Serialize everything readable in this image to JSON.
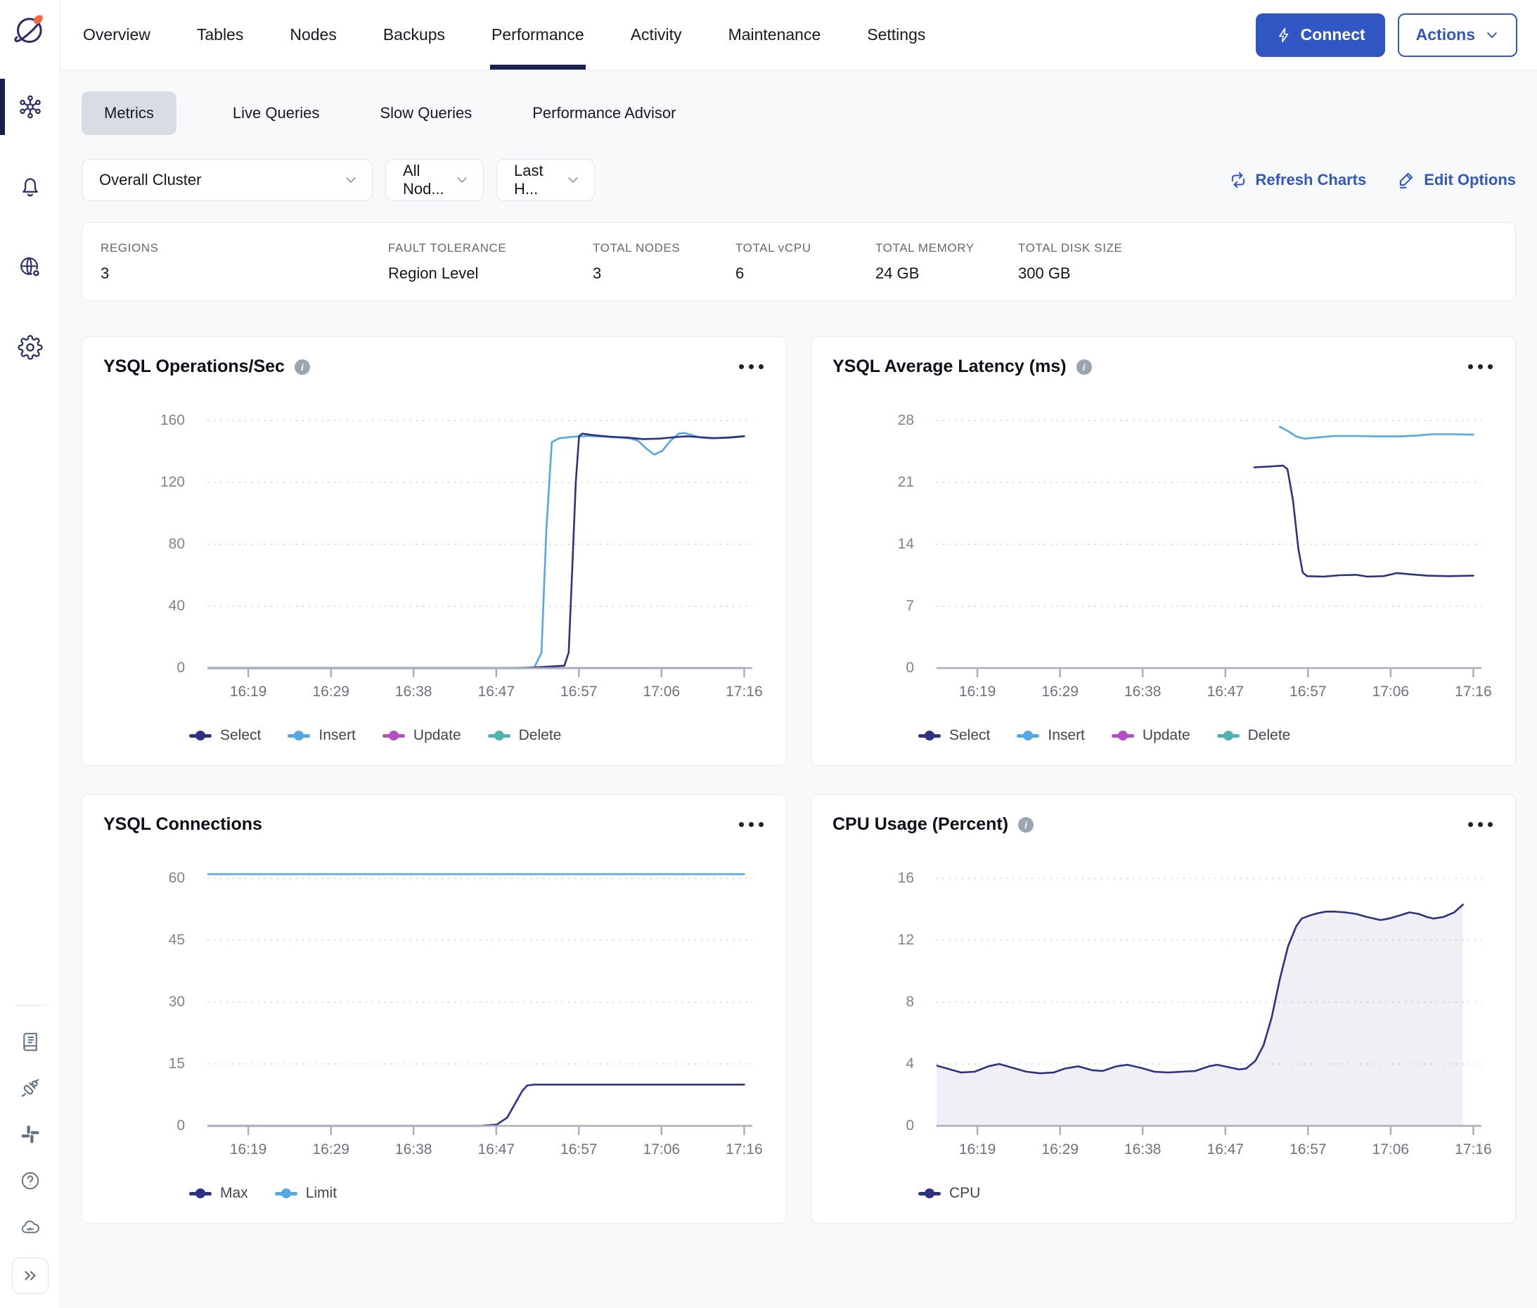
{
  "colors": {
    "accent_blue": "#3057c4",
    "active_underline": "#1a1f52",
    "series_navy": "#2d3282",
    "series_light_blue": "#55a7e5",
    "series_magenta": "#b44ec5",
    "series_teal": "#4db5ad",
    "area_fill": "rgba(45,50,130,0.08)"
  },
  "sidebar": {
    "top_items": [
      {
        "id": "clusters",
        "icon": "clusters-icon",
        "active": true
      },
      {
        "id": "alerts",
        "icon": "alerts-bell-icon",
        "active": false
      },
      {
        "id": "network",
        "icon": "network-globe-gear-icon",
        "active": false
      },
      {
        "id": "settings",
        "icon": "settings-gear-icon",
        "active": false
      }
    ],
    "bottom_items": [
      {
        "id": "docs",
        "icon": "docs-book-icon"
      },
      {
        "id": "integrations",
        "icon": "integrations-plug-icon"
      },
      {
        "id": "slack",
        "icon": "slack-icon"
      },
      {
        "id": "help",
        "icon": "help-question-icon"
      },
      {
        "id": "cloud-status",
        "icon": "cloud-status-icon"
      },
      {
        "id": "expand",
        "icon": "chevrons-right-icon"
      }
    ]
  },
  "header": {
    "tabs": [
      "Overview",
      "Tables",
      "Nodes",
      "Backups",
      "Performance",
      "Activity",
      "Maintenance",
      "Settings"
    ],
    "active_tab": "Performance",
    "connect_label": "Connect",
    "actions_label": "Actions"
  },
  "subtabs": {
    "items": [
      "Metrics",
      "Live Queries",
      "Slow Queries",
      "Performance Advisor"
    ],
    "active": "Metrics"
  },
  "filters": {
    "cluster_select": "Overall Cluster",
    "node_select": "All Nod...",
    "time_select": "Last H...",
    "refresh_label": "Refresh Charts",
    "edit_label": "Edit Options"
  },
  "summary": [
    {
      "label": "REGIONS",
      "value": "3"
    },
    {
      "label": "FAULT TOLERANCE",
      "value": "Region Level"
    },
    {
      "label": "TOTAL NODES",
      "value": "3"
    },
    {
      "label": "TOTAL vCPU",
      "value": "6"
    },
    {
      "label": "TOTAL MEMORY",
      "value": "24 GB"
    },
    {
      "label": "TOTAL DISK SIZE",
      "value": "300 GB"
    }
  ],
  "chart_data": [
    {
      "type": "line",
      "title": "YSQL Operations/Sec",
      "info_icon": true,
      "ylim": [
        0,
        160
      ],
      "yticks": [
        0,
        40,
        80,
        120,
        160
      ],
      "xticks": [
        {
          "label": "16:19",
          "f": 0.075
        },
        {
          "label": "16:29",
          "f": 0.2267
        },
        {
          "label": "16:38",
          "f": 0.3783
        },
        {
          "label": "16:47",
          "f": 0.53
        },
        {
          "label": "16:57",
          "f": 0.6817
        },
        {
          "label": "17:06",
          "f": 0.8333
        },
        {
          "label": "17:16",
          "f": 0.985
        }
      ],
      "series": [
        {
          "name": "Select",
          "color": "#2d3282",
          "points": [
            [
              0,
              0
            ],
            [
              0.58,
              0
            ],
            [
              0.62,
              0.8
            ],
            [
              0.655,
              1.5
            ],
            [
              0.663,
              10
            ],
            [
              0.669,
              60
            ],
            [
              0.676,
              120
            ],
            [
              0.682,
              150
            ],
            [
              0.688,
              151.5
            ],
            [
              0.71,
              150.5
            ],
            [
              0.74,
              149.5
            ],
            [
              0.77,
              149
            ],
            [
              0.8,
              148
            ],
            [
              0.83,
              148.3
            ],
            [
              0.86,
              149.3
            ],
            [
              0.88,
              149.8
            ],
            [
              0.9,
              149.3
            ],
            [
              0.93,
              148.6
            ],
            [
              0.96,
              149
            ],
            [
              0.985,
              149.8
            ]
          ]
        },
        {
          "name": "Insert",
          "color": "#55a7e5",
          "points": [
            [
              0,
              0
            ],
            [
              0.55,
              0
            ],
            [
              0.6,
              0.5
            ],
            [
              0.613,
              10
            ],
            [
              0.622,
              90
            ],
            [
              0.632,
              146
            ],
            [
              0.645,
              148.5
            ],
            [
              0.67,
              149.5
            ],
            [
              0.7,
              150
            ],
            [
              0.73,
              149.5
            ],
            [
              0.755,
              149
            ],
            [
              0.775,
              148.5
            ],
            [
              0.79,
              147
            ],
            [
              0.805,
              142
            ],
            [
              0.82,
              138
            ],
            [
              0.835,
              140.5
            ],
            [
              0.85,
              147
            ],
            [
              0.865,
              151.5
            ],
            [
              0.875,
              152
            ],
            [
              0.89,
              150.5
            ],
            [
              0.905,
              149
            ],
            [
              0.925,
              148.5
            ],
            [
              0.95,
              149
            ],
            [
              0.985,
              150
            ]
          ]
        },
        {
          "name": "Update",
          "color": "#b44ec5",
          "points": [
            [
              0,
              0
            ],
            [
              0.985,
              0
            ]
          ]
        },
        {
          "name": "Delete",
          "color": "#4db5ad",
          "points": [
            [
              0,
              0
            ],
            [
              0.985,
              0
            ]
          ]
        }
      ]
    },
    {
      "type": "line",
      "title": "YSQL Average Latency (ms)",
      "info_icon": true,
      "ylim": [
        0,
        28
      ],
      "yticks": [
        0,
        7,
        14,
        21,
        28
      ],
      "xticks": [
        {
          "label": "16:19",
          "f": 0.075
        },
        {
          "label": "16:29",
          "f": 0.2267
        },
        {
          "label": "16:38",
          "f": 0.3783
        },
        {
          "label": "16:47",
          "f": 0.53
        },
        {
          "label": "16:57",
          "f": 0.6817
        },
        {
          "label": "17:06",
          "f": 0.8333
        },
        {
          "label": "17:16",
          "f": 0.985
        }
      ],
      "series": [
        {
          "name": "Select",
          "color": "#2d3282",
          "points": [
            [
              0.583,
              22.7
            ],
            [
              0.61,
              22.8
            ],
            [
              0.636,
              22.9
            ],
            [
              0.644,
              22.5
            ],
            [
              0.654,
              19
            ],
            [
              0.664,
              13.5
            ],
            [
              0.672,
              10.8
            ],
            [
              0.68,
              10.4
            ],
            [
              0.71,
              10.35
            ],
            [
              0.74,
              10.5
            ],
            [
              0.77,
              10.55
            ],
            [
              0.79,
              10.35
            ],
            [
              0.82,
              10.4
            ],
            [
              0.845,
              10.75
            ],
            [
              0.87,
              10.6
            ],
            [
              0.9,
              10.45
            ],
            [
              0.94,
              10.4
            ],
            [
              0.985,
              10.45
            ]
          ]
        },
        {
          "name": "Insert",
          "color": "#55a7e5",
          "points": [
            [
              0.63,
              27.3
            ],
            [
              0.645,
              26.8
            ],
            [
              0.66,
              26.2
            ],
            [
              0.675,
              25.95
            ],
            [
              0.7,
              26.1
            ],
            [
              0.73,
              26.25
            ],
            [
              0.77,
              26.25
            ],
            [
              0.81,
              26.2
            ],
            [
              0.85,
              26.2
            ],
            [
              0.88,
              26.3
            ],
            [
              0.91,
              26.45
            ],
            [
              0.95,
              26.45
            ],
            [
              0.985,
              26.4
            ]
          ]
        },
        {
          "name": "Update",
          "color": "#b44ec5",
          "points": []
        },
        {
          "name": "Delete",
          "color": "#4db5ad",
          "points": []
        }
      ]
    },
    {
      "type": "line",
      "title": "YSQL Connections",
      "info_icon": false,
      "ylim": [
        0,
        60
      ],
      "yticks": [
        0,
        15,
        30,
        45,
        60
      ],
      "xticks": [
        {
          "label": "16:19",
          "f": 0.075
        },
        {
          "label": "16:29",
          "f": 0.2267
        },
        {
          "label": "16:38",
          "f": 0.3783
        },
        {
          "label": "16:47",
          "f": 0.53
        },
        {
          "label": "16:57",
          "f": 0.6817
        },
        {
          "label": "17:06",
          "f": 0.8333
        },
        {
          "label": "17:16",
          "f": 0.985
        }
      ],
      "series": [
        {
          "name": "Max",
          "color": "#2d3282",
          "points": [
            [
              0,
              0
            ],
            [
              0.5,
              0
            ],
            [
              0.531,
              0.3
            ],
            [
              0.55,
              2
            ],
            [
              0.565,
              5.5
            ],
            [
              0.578,
              8.5
            ],
            [
              0.587,
              9.8
            ],
            [
              0.6,
              10
            ],
            [
              0.985,
              10
            ]
          ]
        },
        {
          "name": "Limit",
          "color": "#55a7e5",
          "points": [
            [
              0,
              61
            ],
            [
              0.985,
              61
            ]
          ]
        }
      ]
    },
    {
      "type": "area",
      "title": "CPU Usage (Percent)",
      "info_icon": true,
      "ylim": [
        0,
        16
      ],
      "yticks": [
        0,
        4,
        8,
        12,
        16
      ],
      "xticks": [
        {
          "label": "16:19",
          "f": 0.075
        },
        {
          "label": "16:29",
          "f": 0.2267
        },
        {
          "label": "16:38",
          "f": 0.3783
        },
        {
          "label": "16:47",
          "f": 0.53
        },
        {
          "label": "16:57",
          "f": 0.6817
        },
        {
          "label": "17:06",
          "f": 0.8333
        },
        {
          "label": "17:16",
          "f": 0.985
        }
      ],
      "series": [
        {
          "name": "CPU",
          "color": "#2d3282",
          "area": true,
          "points": [
            [
              0,
              3.9
            ],
            [
              0.02,
              3.7
            ],
            [
              0.045,
              3.45
            ],
            [
              0.07,
              3.5
            ],
            [
              0.095,
              3.85
            ],
            [
              0.115,
              4.0
            ],
            [
              0.14,
              3.75
            ],
            [
              0.165,
              3.5
            ],
            [
              0.19,
              3.4
            ],
            [
              0.215,
              3.45
            ],
            [
              0.235,
              3.7
            ],
            [
              0.26,
              3.85
            ],
            [
              0.285,
              3.6
            ],
            [
              0.305,
              3.55
            ],
            [
              0.33,
              3.85
            ],
            [
              0.35,
              3.95
            ],
            [
              0.375,
              3.75
            ],
            [
              0.4,
              3.5
            ],
            [
              0.425,
              3.45
            ],
            [
              0.45,
              3.5
            ],
            [
              0.475,
              3.55
            ],
            [
              0.5,
              3.85
            ],
            [
              0.515,
              3.95
            ],
            [
              0.535,
              3.8
            ],
            [
              0.555,
              3.65
            ],
            [
              0.568,
              3.7
            ],
            [
              0.585,
              4.2
            ],
            [
              0.6,
              5.2
            ],
            [
              0.615,
              7.0
            ],
            [
              0.63,
              9.5
            ],
            [
              0.645,
              11.6
            ],
            [
              0.66,
              12.9
            ],
            [
              0.67,
              13.4
            ],
            [
              0.685,
              13.6
            ],
            [
              0.7,
              13.75
            ],
            [
              0.715,
              13.85
            ],
            [
              0.73,
              13.85
            ],
            [
              0.75,
              13.8
            ],
            [
              0.77,
              13.7
            ],
            [
              0.79,
              13.5
            ],
            [
              0.815,
              13.3
            ],
            [
              0.83,
              13.4
            ],
            [
              0.85,
              13.6
            ],
            [
              0.868,
              13.8
            ],
            [
              0.885,
              13.7
            ],
            [
              0.9,
              13.5
            ],
            [
              0.912,
              13.4
            ],
            [
              0.93,
              13.5
            ],
            [
              0.95,
              13.8
            ],
            [
              0.966,
              14.3
            ]
          ]
        }
      ]
    }
  ]
}
